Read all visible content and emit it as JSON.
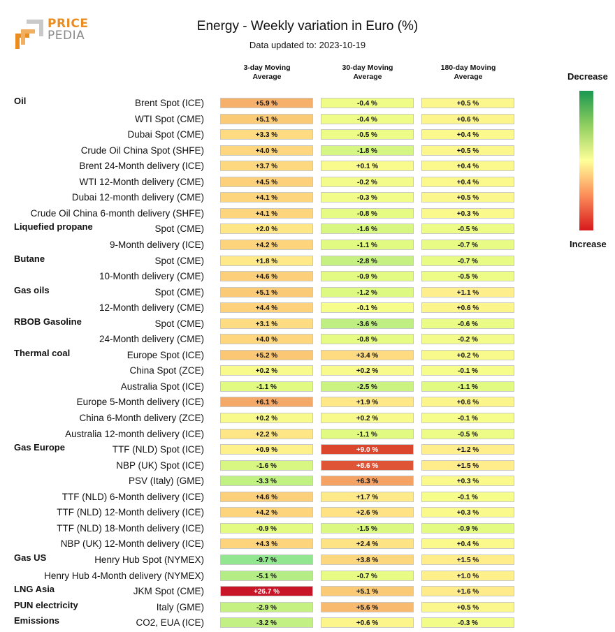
{
  "logo": {
    "line1": "PRICE",
    "line2": "PEDIA"
  },
  "title": "Energy - Weekly variation in Euro (%)",
  "subtitle": "Data updated to: 2023-10-19",
  "columns": [
    {
      "line1": "3-day Moving",
      "line2": "Average"
    },
    {
      "line1": "30-day Moving",
      "line2": "Average"
    },
    {
      "line1": "180-day Moving",
      "line2": "Average"
    }
  ],
  "legend": {
    "top": "Decrease",
    "bottom": "Increase"
  },
  "chart_data": {
    "type": "table",
    "title": "Energy - Weekly variation in Euro (%)",
    "groups": [
      {
        "name": "Oil",
        "rows": [
          {
            "label": "Brent Spot (ICE)",
            "values": [
              5.9,
              -0.4,
              0.5
            ],
            "display": [
              "+5.9 %",
              "-0.4 %",
              "+0.5 %"
            ]
          },
          {
            "label": "WTI Spot (CME)",
            "values": [
              5.1,
              -0.4,
              0.6
            ],
            "display": [
              "+5.1 %",
              "-0.4 %",
              "+0.6 %"
            ]
          },
          {
            "label": "Dubai Spot (CME)",
            "values": [
              3.3,
              -0.5,
              0.4
            ],
            "display": [
              "+3.3 %",
              "-0.5 %",
              "+0.4 %"
            ]
          },
          {
            "label": "Crude Oil China Spot (SHFE)",
            "values": [
              4.0,
              -1.8,
              0.5
            ],
            "display": [
              "+4.0 %",
              "-1.8 %",
              "+0.5 %"
            ]
          },
          {
            "label": "Brent 24-Month delivery (ICE)",
            "values": [
              3.7,
              0.1,
              0.4
            ],
            "display": [
              "+3.7 %",
              "+0.1 %",
              "+0.4 %"
            ]
          },
          {
            "label": "WTI 12-Month delivery (CME)",
            "values": [
              4.5,
              -0.2,
              0.4
            ],
            "display": [
              "+4.5 %",
              "-0.2 %",
              "+0.4 %"
            ]
          },
          {
            "label": "Dubai 12-month delivery (CME)",
            "values": [
              4.1,
              -0.3,
              0.5
            ],
            "display": [
              "+4.1 %",
              "-0.3 %",
              "+0.5 %"
            ]
          },
          {
            "label": "Crude Oil China 6-month delivery (SHFE)",
            "values": [
              4.1,
              -0.8,
              0.3
            ],
            "display": [
              "+4.1 %",
              "-0.8 %",
              "+0.3 %"
            ]
          }
        ]
      },
      {
        "name": "Liquefied propane",
        "rows": [
          {
            "label": "Spot (CME)",
            "values": [
              2.0,
              -1.6,
              -0.5
            ],
            "display": [
              "+2.0 %",
              "-1.6 %",
              "-0.5 %"
            ]
          },
          {
            "label": "9-Month delivery (ICE)",
            "values": [
              4.2,
              -1.1,
              -0.7
            ],
            "display": [
              "+4.2 %",
              "-1.1 %",
              "-0.7 %"
            ]
          }
        ]
      },
      {
        "name": "Butane",
        "rows": [
          {
            "label": "Spot (CME)",
            "values": [
              1.8,
              -2.8,
              -0.7
            ],
            "display": [
              "+1.8 %",
              "-2.8 %",
              "-0.7 %"
            ]
          },
          {
            "label": "10-Month delivery (CME)",
            "values": [
              4.6,
              -0.9,
              -0.5
            ],
            "display": [
              "+4.6 %",
              "-0.9 %",
              "-0.5 %"
            ]
          }
        ]
      },
      {
        "name": "Gas oils",
        "rows": [
          {
            "label": "Spot (CME)",
            "values": [
              5.1,
              -1.2,
              1.1
            ],
            "display": [
              "+5.1 %",
              "-1.2 %",
              "+1.1 %"
            ]
          },
          {
            "label": "12-Month delivery (CME)",
            "values": [
              4.4,
              -0.1,
              0.6
            ],
            "display": [
              "+4.4 %",
              "-0.1 %",
              "+0.6 %"
            ]
          }
        ]
      },
      {
        "name": "RBOB Gasoline",
        "rows": [
          {
            "label": "Spot (CME)",
            "values": [
              3.1,
              -3.6,
              -0.6
            ],
            "display": [
              "+3.1 %",
              "-3.6 %",
              "-0.6 %"
            ]
          },
          {
            "label": "24-Month delivery (CME)",
            "values": [
              4.0,
              -0.8,
              -0.2
            ],
            "display": [
              "+4.0 %",
              "-0.8 %",
              "-0.2 %"
            ]
          }
        ]
      },
      {
        "name": "Thermal coal",
        "rows": [
          {
            "label": "Europe Spot (ICE)",
            "values": [
              5.2,
              3.4,
              0.2
            ],
            "display": [
              "+5.2 %",
              "+3.4 %",
              "+0.2 %"
            ]
          },
          {
            "label": "China Spot (ZCE)",
            "values": [
              0.2,
              0.2,
              -0.1
            ],
            "display": [
              "+0.2 %",
              "+0.2 %",
              "-0.1 %"
            ]
          },
          {
            "label": "Australia Spot (ICE)",
            "values": [
              -1.1,
              -2.5,
              -1.1
            ],
            "display": [
              "-1.1 %",
              "-2.5 %",
              "-1.1 %"
            ]
          },
          {
            "label": "Europe 5-Month delivery (ICE)",
            "values": [
              6.1,
              1.9,
              0.6
            ],
            "display": [
              "+6.1 %",
              "+1.9 %",
              "+0.6 %"
            ]
          },
          {
            "label": "China 6-Month delivery (ZCE)",
            "values": [
              0.2,
              0.2,
              -0.1
            ],
            "display": [
              "+0.2 %",
              "+0.2 %",
              "-0.1 %"
            ]
          },
          {
            "label": "Australia 12-month delivery (ICE)",
            "values": [
              2.2,
              -1.1,
              -0.5
            ],
            "display": [
              "+2.2 %",
              "-1.1 %",
              "-0.5 %"
            ]
          }
        ]
      },
      {
        "name": "Gas Europe",
        "rows": [
          {
            "label": "TTF (NLD) Spot (ICE)",
            "values": [
              0.9,
              9.0,
              1.2
            ],
            "display": [
              "+0.9 %",
              "+9.0 %",
              "+1.2 %"
            ]
          },
          {
            "label": "NBP (UK) Spot (ICE)",
            "values": [
              -1.6,
              8.6,
              1.5
            ],
            "display": [
              "-1.6 %",
              "+8.6 %",
              "+1.5 %"
            ]
          },
          {
            "label": "PSV (Italy) (GME)",
            "values": [
              -3.3,
              6.3,
              0.3
            ],
            "display": [
              "-3.3 %",
              "+6.3 %",
              "+0.3 %"
            ]
          },
          {
            "label": "TTF (NLD) 6-Month delivery (ICE)",
            "values": [
              4.6,
              1.7,
              -0.1
            ],
            "display": [
              "+4.6 %",
              "+1.7 %",
              "-0.1 %"
            ]
          },
          {
            "label": "TTF (NLD) 12-Month delivery (ICE)",
            "values": [
              4.2,
              2.6,
              0.3
            ],
            "display": [
              "+4.2 %",
              "+2.6 %",
              "+0.3 %"
            ]
          },
          {
            "label": "TTF (NLD) 18-Month delivery (ICE)",
            "values": [
              -0.9,
              -1.5,
              -0.9
            ],
            "display": [
              "-0.9 %",
              "-1.5 %",
              "-0.9 %"
            ]
          },
          {
            "label": "NBP (UK) 12-Month delivery (ICE)",
            "values": [
              4.3,
              2.4,
              0.4
            ],
            "display": [
              "+4.3 %",
              "+2.4 %",
              "+0.4 %"
            ]
          }
        ]
      },
      {
        "name": "Gas US",
        "rows": [
          {
            "label": "Henry Hub Spot (NYMEX)",
            "values": [
              -9.7,
              3.8,
              1.5
            ],
            "display": [
              "-9.7 %",
              "+3.8 %",
              "+1.5 %"
            ]
          },
          {
            "label": "Henry Hub 4-Month delivery (NYMEX)",
            "values": [
              -5.1,
              -0.7,
              1.0
            ],
            "display": [
              "-5.1 %",
              "-0.7 %",
              "+1.0 %"
            ]
          }
        ]
      },
      {
        "name": "LNG Asia",
        "rows": [
          {
            "label": "JKM Spot (CME)",
            "values": [
              26.7,
              5.1,
              1.6
            ],
            "display": [
              "+26.7 %",
              "+5.1 %",
              "+1.6 %"
            ]
          }
        ]
      },
      {
        "name": "PUN electricity",
        "rows": [
          {
            "label": "Italy (GME)",
            "values": [
              -2.9,
              5.6,
              0.5
            ],
            "display": [
              "-2.9 %",
              "+5.6 %",
              "+0.5 %"
            ]
          }
        ]
      },
      {
        "name": "Emissions",
        "rows": [
          {
            "label": "CO2, EUA (ICE)",
            "values": [
              -3.2,
              0.6,
              -0.3
            ],
            "display": [
              "-3.2 %",
              "+0.6 %",
              "-0.3 %"
            ]
          }
        ]
      }
    ]
  }
}
